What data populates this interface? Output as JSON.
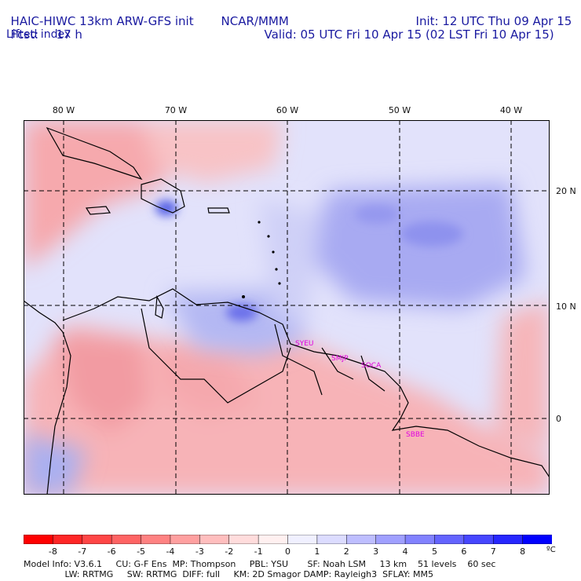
{
  "header": {
    "model": "HAIC-HIWC 13km ARW-GFS init",
    "org": "NCAR/MMM",
    "init": "Init: 12 UTC Thu 09 Apr 15",
    "fcst_label": "Fcst:",
    "fcst_value": "17 h",
    "valid": "Valid: 05 UTC Fri 10 Apr 15 (02 LST Fri 10 Apr 15)",
    "field": "Lifted index"
  },
  "map": {
    "lon_labels": [
      "80 W",
      "70 W",
      "60 W",
      "50 W",
      "40 W"
    ],
    "lat_labels": [
      "20 N",
      "10 N",
      "0"
    ],
    "stations": [
      "SYEU",
      "SMJP",
      "SOCA",
      "SBBE"
    ],
    "station_color": "#e000e0"
  },
  "colorbar": {
    "ticks": [
      "-8",
      "-7",
      "-6",
      "-5",
      "-4",
      "-3",
      "-2",
      "-1",
      "0",
      "1",
      "2",
      "3",
      "4",
      "5",
      "6",
      "7",
      "8"
    ],
    "unit": "ºC",
    "colors": [
      "#ff0000",
      "#ff2626",
      "#ff4646",
      "#ff6464",
      "#ff8282",
      "#ffa0a0",
      "#ffbebe",
      "#ffdcdc",
      "#fff0f0",
      "#f0f0ff",
      "#dcdcff",
      "#bebeff",
      "#a0a0ff",
      "#8282ff",
      "#6464ff",
      "#4646ff",
      "#2626ff",
      "#0000ff"
    ]
  },
  "footer": {
    "line1": "Model Info: V3.6.1     CU: G-F Ens  MP: Thompson     PBL: YSU       SF: Noah LSM     13 km    51 levels    60 sec",
    "line2": "               LW: RRTMG     SW: RRTMG  DIFF: full     KM: 2D Smagor DAMP: Rayleigh3  SFLAY: MM5"
  }
}
